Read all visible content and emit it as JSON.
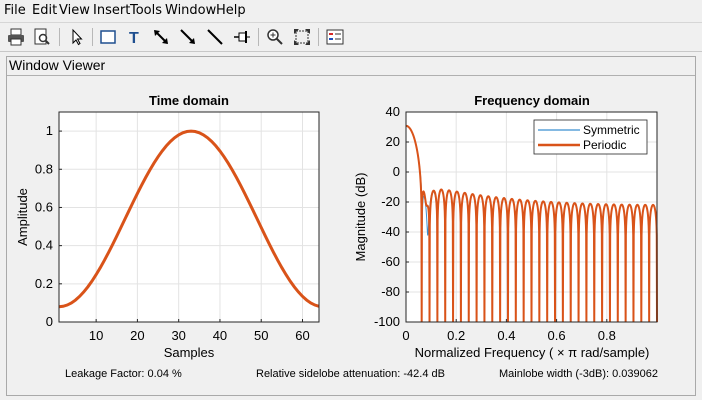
{
  "menu": [
    "File",
    "Edit",
    "View",
    "Insert",
    "Tools",
    "Window",
    "Help"
  ],
  "toolbar_icons": [
    "print-icon",
    "print-preview-icon",
    "select-arrow-icon",
    "rectangle-icon",
    "text-icon",
    "arrow-icon",
    "double-arrow-icon",
    "line-icon",
    "pin-icon",
    "zoom-in-icon",
    "fit-icon",
    "legend-icon"
  ],
  "panel": {
    "title": "Window Viewer"
  },
  "stats": {
    "leakage": "Leakage Factor: 0.04 %",
    "sidelobe": "Relative sidelobe attenuation: -42.4 dB",
    "mainlobe": "Mainlobe width (-3dB): 0.039062"
  },
  "colors": {
    "symmetric": "#3a8fd0",
    "periodic": "#d95319"
  },
  "chart_data": [
    {
      "type": "line",
      "title": "Time domain",
      "xlabel": "Samples",
      "ylabel": "Amplitude",
      "xlim": [
        1,
        64
      ],
      "ylim": [
        0,
        1.1
      ],
      "xticks": [
        10,
        20,
        30,
        40,
        50,
        60
      ],
      "yticks": [
        0,
        0.2,
        0.4,
        0.6,
        0.8,
        1
      ],
      "ytick_labels": [
        "0",
        "0.2",
        "0.4",
        "0.6",
        "0.8",
        "1"
      ],
      "grid": true,
      "series": [
        {
          "window": "periodic hamming",
          "length": 64,
          "color": "#d95319"
        }
      ]
    },
    {
      "type": "line",
      "title": "Frequency domain",
      "xlabel": "Normalized Frequency  ( × π rad/sample)",
      "ylabel": "Magnitude (dB)",
      "xlim": [
        0,
        1
      ],
      "ylim": [
        -100,
        40
      ],
      "xticks": [
        0,
        0.2,
        0.4,
        0.6,
        0.8
      ],
      "xtick_labels": [
        "0",
        "0.2",
        "0.4",
        "0.6",
        "0.8"
      ],
      "yticks": [
        -100,
        -80,
        -60,
        -40,
        -20,
        0,
        20,
        40
      ],
      "grid": true,
      "legend": "top-right",
      "series": [
        {
          "name": "Symmetric",
          "color": "#3a8fd0",
          "window": "symmetric hamming",
          "length": 64
        },
        {
          "name": "Periodic",
          "color": "#d95319",
          "window": "periodic hamming",
          "length": 64
        }
      ]
    }
  ]
}
